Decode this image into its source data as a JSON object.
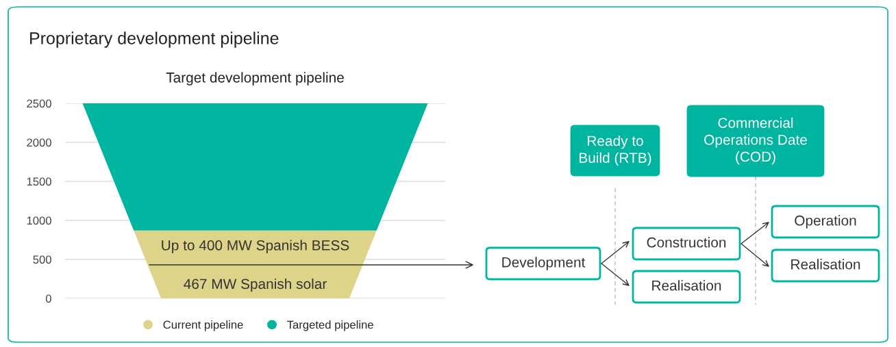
{
  "chart_data": [
    {
      "type": "bar",
      "title": "Proprietary development pipeline",
      "subtitle": "Target development pipeline",
      "stacked": true,
      "categories": [
        null
      ],
      "series": [
        {
          "name": "Current pipeline",
          "color": "#ddd48a",
          "values": [
            870
          ]
        },
        {
          "name": "Targeted pipeline",
          "color": "#00b5a0",
          "values": [
            1630
          ]
        }
      ],
      "annotations": [
        "467 MW Spanish solar",
        "Up to 400 MW Spanish BESS"
      ],
      "ylim": [
        0,
        2500
      ],
      "yticks": [
        0,
        500,
        1000,
        1500,
        2000,
        2500
      ],
      "grid": "y",
      "legend": "bottom",
      "tick_labels": "y"
    },
    {
      "type": "other",
      "annotations": [
        "Ready to\nBuild (RTB)",
        "Commercial\nOperations Date\n(COD)",
        "Development",
        "Construction",
        "Realisation",
        "Operation",
        "Realisation"
      ]
    }
  ]
}
